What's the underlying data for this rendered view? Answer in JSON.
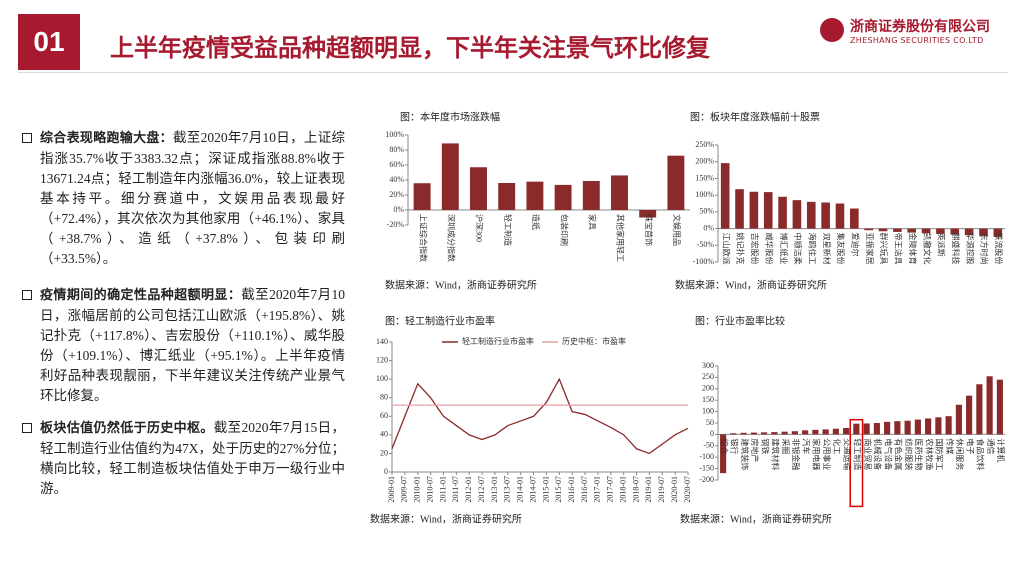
{
  "header": {
    "number": "01",
    "title": "上半年疫情受益品种超额明显，下半年关注景气环比修复",
    "company": "浙商证券股份有限公司",
    "company_en": "ZHESHANG SECURITIES CO.LTD"
  },
  "bullets": [
    {
      "lead": "综合表现略跑输大盘：",
      "text": "截至2020年7月10日，上证综指涨35.7%收于3383.32点；深证成指涨88.8%收于13671.24点；轻工制造年内涨幅36.0%，较上证表现基本持平。细分赛道中，文娱用品表现最好（+72.4%），其次依次为其他家用（+46.1%）、家具（+38.7%）、造纸（+37.8%）、包装印刷（+33.5%）。"
    },
    {
      "lead": "疫情期间的确定性品种超额明显：",
      "text": "截至2020年7月10日，涨幅居前的公司包括江山欧派（+195.8%）、姚记扑克（+117.8%）、吉宏股份（+110.1%）、威华股份（+109.1%）、博汇纸业（+95.1%）。上半年疫情利好品种表现靓丽，下半年建议关注传统产业景气环比修复。"
    },
    {
      "lead": "板块估值仍然低于历史中枢。",
      "text": "截至2020年7月15日，轻工制造行业估值约为47X，处于历史的27%分位；横向比较，轻工制造板块估值处于申万一级行业中游。"
    }
  ],
  "chart_data": [
    {
      "type": "bar",
      "title": "图：本年度市场涨跌幅",
      "source": "数据来源：Wind，浙商证券研究所",
      "color": "#8b2a2a",
      "categories": [
        "上证综合指数",
        "深圳成分指数",
        "沪深300",
        "轻工制造",
        "造纸",
        "包装印刷",
        "家具",
        "其他家用轻工",
        "珠宝首饰",
        "文娱用品"
      ],
      "values": [
        35.7,
        88.8,
        57,
        36.0,
        37.8,
        33.5,
        38.7,
        46.1,
        -10,
        72.4
      ],
      "ylim": [
        -20,
        100
      ],
      "yticks": [
        {
          "value": -20,
          "label": "-20%"
        },
        {
          "value": 0,
          "label": "0%"
        },
        {
          "value": 20,
          "label": "20%"
        },
        {
          "value": 40,
          "label": "40%"
        },
        {
          "value": 60,
          "label": "60%"
        },
        {
          "value": 80,
          "label": "80%"
        },
        {
          "value": 100,
          "label": "100%"
        }
      ]
    },
    {
      "type": "bar",
      "title": "图：板块年度涨跌幅前十股票",
      "source": "数据来源：Wind，浙商证券研究所",
      "color": "#8b2a2a",
      "categories": [
        "江山欧派",
        "姚记扑克",
        "吉宏股份",
        "威华股份",
        "博汇纸业",
        "中顺洁柔",
        "海鸥住工",
        "双星新材",
        "集友股份",
        "爱迪尔",
        "亚振家居",
        "群兴玩具",
        "帝王洁具",
        "金陵体育",
        "凯撒文化",
        "英派斯",
        "麒盛科技",
        "华源控股",
        "东方时尚",
        "铁流股份"
      ],
      "values": [
        195.8,
        117.8,
        110.1,
        109.1,
        95.1,
        85,
        80,
        78,
        75,
        60,
        -5,
        -8,
        -10,
        -12,
        -14,
        -16,
        -18,
        -20,
        -22,
        -25
      ],
      "ylim": [
        -100,
        250
      ],
      "yticks": [
        {
          "value": -100,
          "label": "-100%"
        },
        {
          "value": -50,
          "label": "-50%"
        },
        {
          "value": 0,
          "label": "0%"
        },
        {
          "value": 50,
          "label": "50%"
        },
        {
          "value": 100,
          "label": "100%"
        },
        {
          "value": 150,
          "label": "150%"
        },
        {
          "value": 200,
          "label": "200%"
        },
        {
          "value": 250,
          "label": "250%"
        }
      ]
    },
    {
      "type": "line",
      "title": "图：轻工制造行业市盈率",
      "source": "数据来源：Wind，浙商证券研究所",
      "categories": [
        "2009-01",
        "2009-07",
        "2010-01",
        "2010-07",
        "2011-01",
        "2011-07",
        "2012-01",
        "2012-07",
        "2013-01",
        "2013-07",
        "2014-01",
        "2014-07",
        "2015-01",
        "2015-07",
        "2016-01",
        "2016-07",
        "2017-01",
        "2017-07",
        "2018-01",
        "2018-07",
        "2019-01",
        "2019-07",
        "2020-01",
        "2020-07"
      ],
      "series": [
        {
          "name": "轻工制造行业市盈率",
          "color": "#8b2a2a",
          "values": [
            25,
            60,
            95,
            80,
            60,
            50,
            40,
            35,
            40,
            50,
            55,
            60,
            75,
            100,
            65,
            62,
            55,
            48,
            40,
            25,
            20,
            30,
            40,
            47
          ]
        },
        {
          "name": "历史中枢：市盈率",
          "color": "#e8a0a0",
          "values": [
            72,
            72,
            72,
            72,
            72,
            72,
            72,
            72,
            72,
            72,
            72,
            72,
            72,
            72,
            72,
            72,
            72,
            72,
            72,
            72,
            72,
            72,
            72,
            72
          ]
        }
      ],
      "ylim": [
        0,
        140
      ],
      "yticks": [
        0,
        20,
        40,
        60,
        80,
        100,
        120,
        140
      ]
    },
    {
      "type": "bar",
      "title": "图：行业市盈率比较",
      "source": "数据来源：Wind，浙商证券研究所",
      "color": "#8b2a2a",
      "highlight_index": 13,
      "categories": [
        "综合",
        "银行",
        "建筑装饰",
        "房地产",
        "钢铁",
        "建筑材料",
        "采掘",
        "非银金融",
        "汽车",
        "家用电器",
        "公用事业",
        "化工",
        "交通运输",
        "轻工制造",
        "商业贸易",
        "机械设备",
        "电气设备",
        "有色金属",
        "纺织服装",
        "医药生物",
        "农林牧渔",
        "国防军工",
        "传媒",
        "休闲服务",
        "电子",
        "食品饮料",
        "通信",
        "计算机"
      ],
      "values": [
        -170,
        5,
        7,
        8,
        9,
        10,
        12,
        14,
        18,
        20,
        22,
        25,
        28,
        47,
        48,
        50,
        55,
        58,
        60,
        65,
        70,
        75,
        80,
        130,
        170,
        220,
        255,
        240
      ],
      "ylim": [
        -200,
        300
      ],
      "yticks": [
        -200,
        -150,
        -100,
        -50,
        0,
        50,
        100,
        150,
        200,
        250,
        300
      ]
    }
  ]
}
